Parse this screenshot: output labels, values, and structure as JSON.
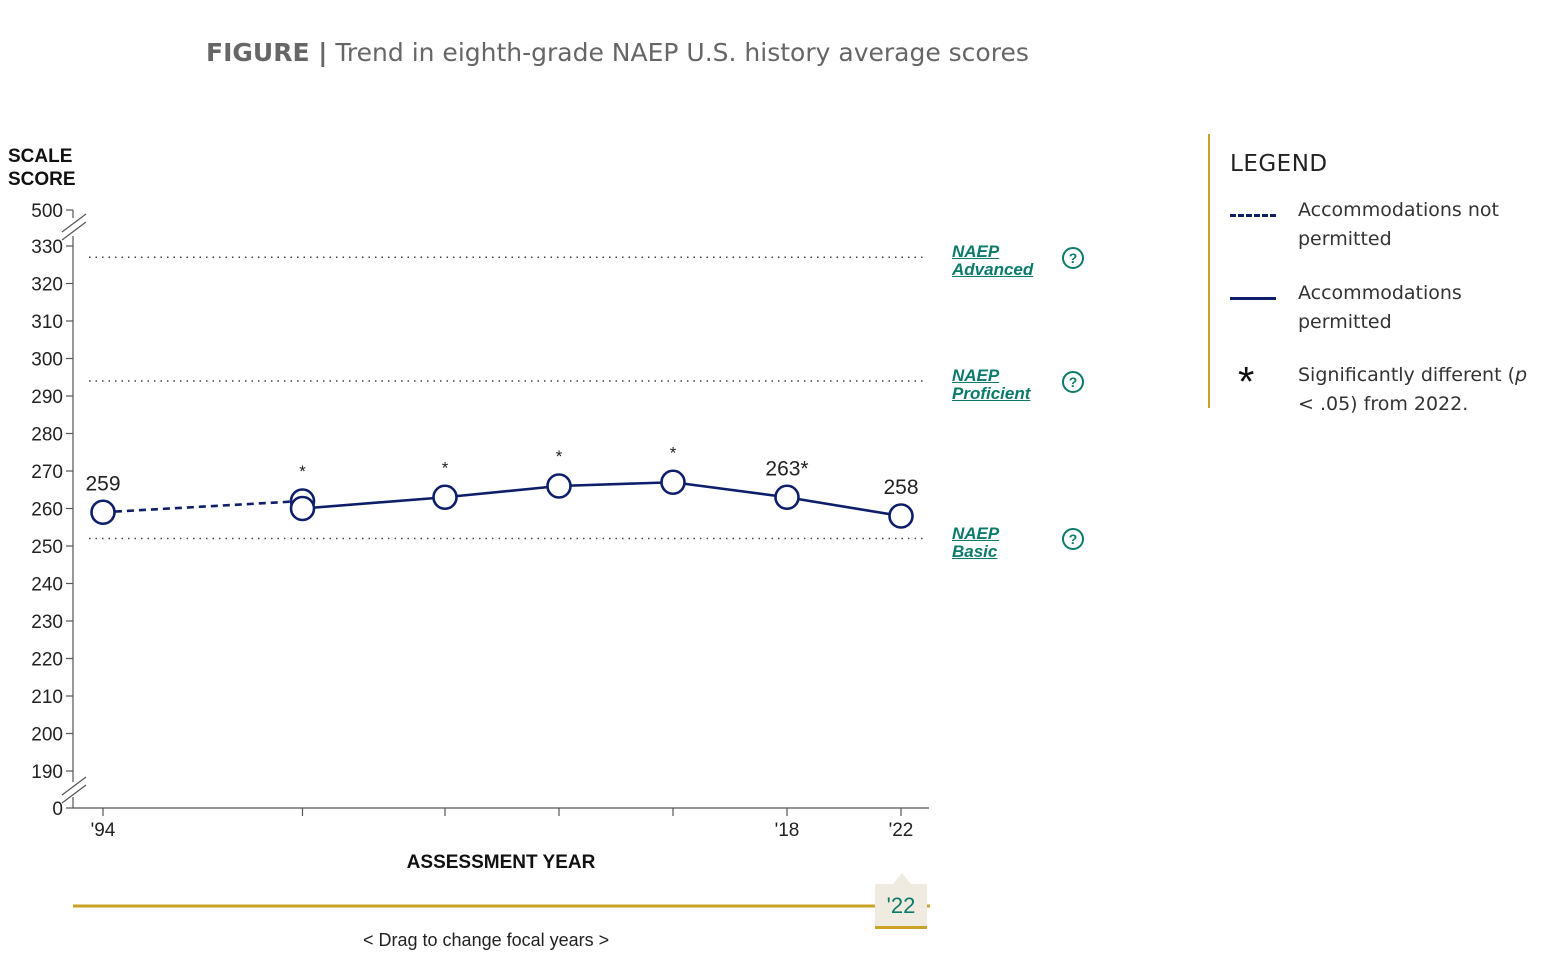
{
  "figure": {
    "label": "FIGURE |",
    "title": "Trend in eighth-grade NAEP U.S. history average scores"
  },
  "chart_data": {
    "type": "line",
    "title": "Trend in eighth-grade NAEP U.S. history average scores",
    "ylabel": [
      "SCALE",
      "SCORE"
    ],
    "xlabel": "ASSESSMENT YEAR",
    "ylim": [
      190,
      330
    ],
    "y_axis_breaks": [
      "500",
      "0"
    ],
    "yticks": [
      190,
      200,
      210,
      220,
      230,
      240,
      250,
      260,
      270,
      280,
      290,
      300,
      310,
      320,
      330
    ],
    "xticks": [
      {
        "year": 1994,
        "label": "'94"
      },
      {
        "year": 2001,
        "label": ""
      },
      {
        "year": 2006,
        "label": ""
      },
      {
        "year": 2010,
        "label": ""
      },
      {
        "year": 2014,
        "label": ""
      },
      {
        "year": 2018,
        "label": "'18"
      },
      {
        "year": 2022,
        "label": "'22"
      }
    ],
    "series": [
      {
        "name": "Accommodations not permitted",
        "style": "dashed",
        "points": [
          {
            "year": 1994,
            "value": 259,
            "label": "259",
            "significant": false
          },
          {
            "year": 2001,
            "value": 262,
            "label": "",
            "significant": true
          }
        ]
      },
      {
        "name": "Accommodations permitted",
        "style": "solid",
        "points": [
          {
            "year": 2001,
            "value": 260,
            "label": "",
            "significant": true
          },
          {
            "year": 2006,
            "value": 263,
            "label": "",
            "significant": true
          },
          {
            "year": 2010,
            "value": 266,
            "label": "",
            "significant": true
          },
          {
            "year": 2014,
            "value": 267,
            "label": "",
            "significant": true
          },
          {
            "year": 2018,
            "value": 263,
            "label": "263*",
            "significant": true
          },
          {
            "year": 2022,
            "value": 258,
            "label": "258",
            "significant": false
          }
        ]
      }
    ],
    "star": "*",
    "achievement_levels": [
      {
        "line1": "NAEP",
        "line2": "Advanced",
        "value": 327
      },
      {
        "line1": "NAEP",
        "line2": "Proficient",
        "value": 294
      },
      {
        "line1": "NAEP",
        "line2": "Basic",
        "value": 252
      }
    ]
  },
  "legend": {
    "title": "LEGEND",
    "items": [
      {
        "text": "Accommodations not permitted"
      },
      {
        "text": "Accommodations permitted"
      },
      {
        "text_html": "Significantly different (p < .05) from 2022.",
        "pre": "Significantly different (",
        "italic": "p",
        "post": " < .05) from 2022.",
        "symbol": "*"
      }
    ]
  },
  "focal": {
    "label": "'22",
    "hint": "<  Drag to change focal years  >"
  },
  "help_symbol": "?",
  "colors": {
    "series": "#0d1f6a",
    "link": "#0a7a6b",
    "slider": "#c9a227",
    "axis": "#555555"
  }
}
